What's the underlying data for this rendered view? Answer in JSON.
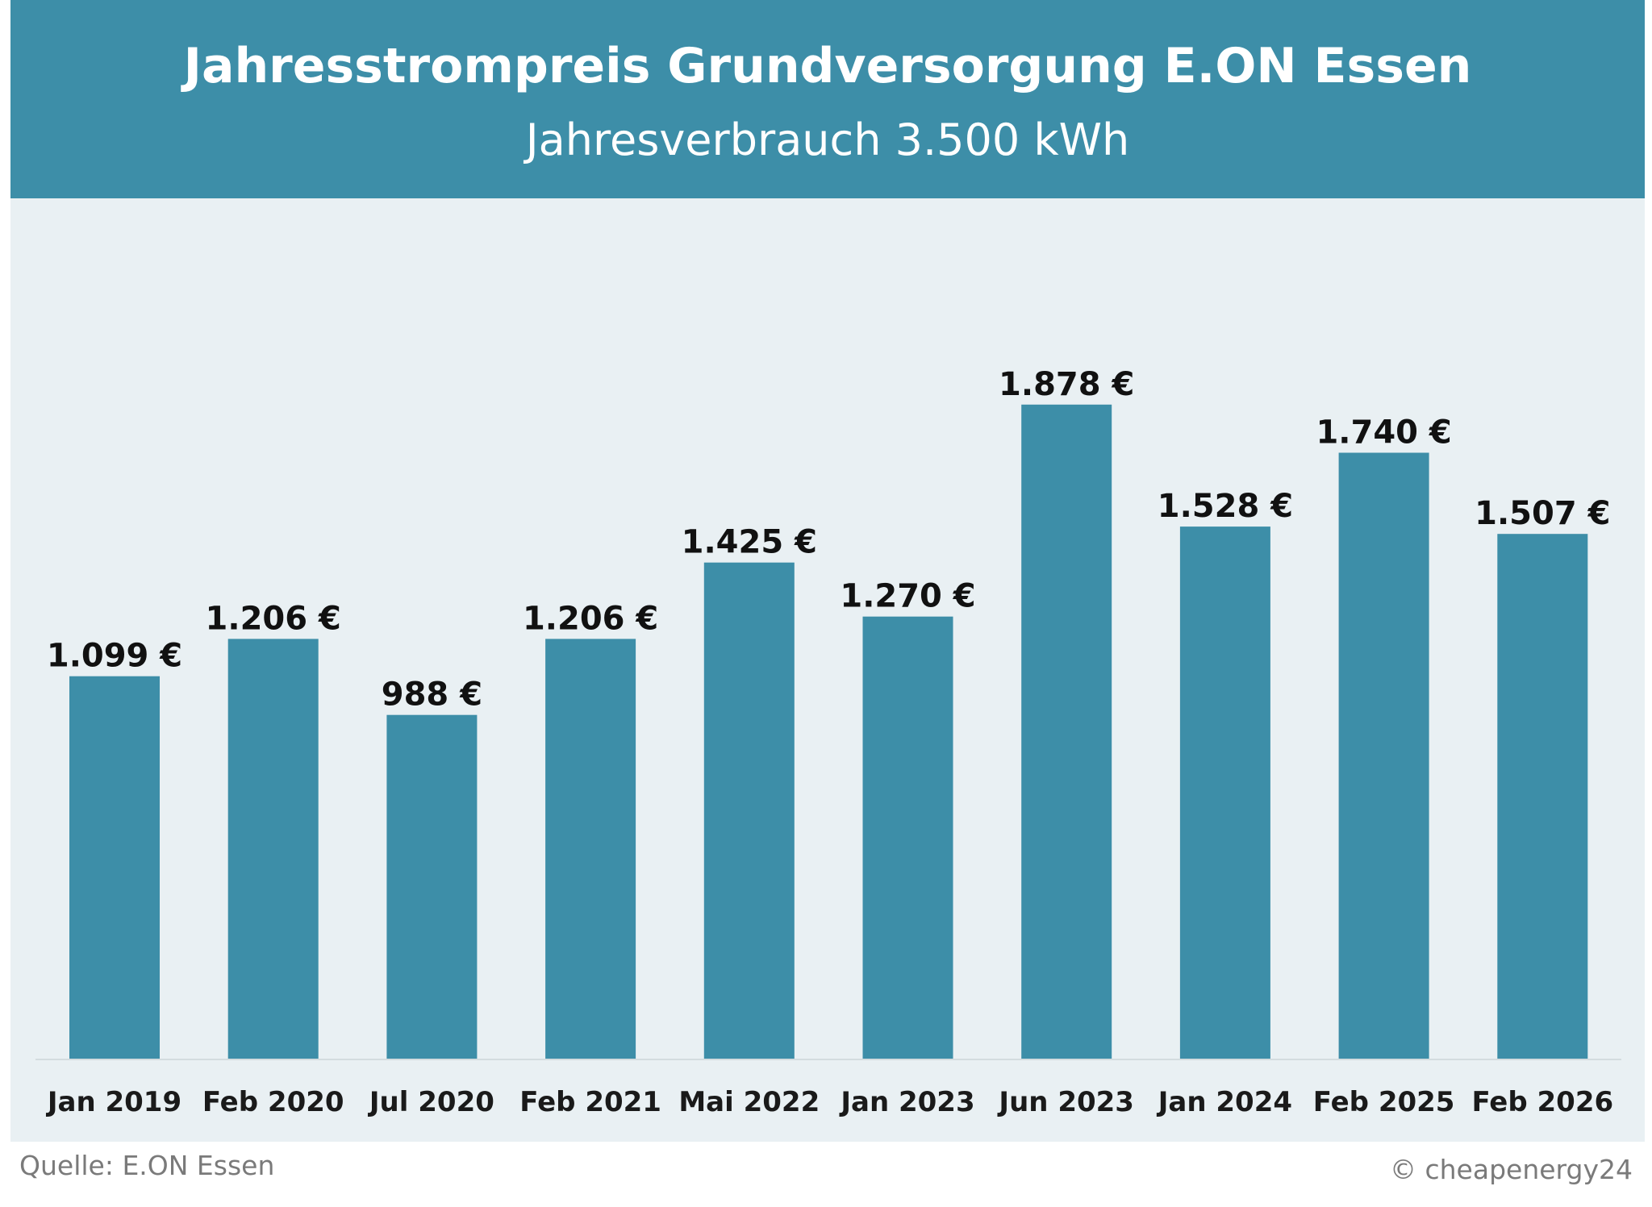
{
  "chart_data": {
    "type": "bar",
    "title": "Jahresstrompreis Grundversorgung E.ON Essen",
    "subtitle": "Jahresverbrauch 3.500 kWh",
    "categories": [
      "Jan 2019",
      "Feb 2020",
      "Jul 2020",
      "Feb 2021",
      "Mai 2022",
      "Jan 2023",
      "Jun 2023",
      "Jan 2024",
      "Feb 2025",
      "Feb 2026"
    ],
    "values": [
      1099,
      1206,
      988,
      1206,
      1425,
      1270,
      1878,
      1528,
      1740,
      1507
    ],
    "value_labels": [
      "1.099 €",
      "1.206 €",
      "988 €",
      "1.206 €",
      "1.425 €",
      "1.270 €",
      "1.878 €",
      "1.528 €",
      "1.740 €",
      "1.507 €"
    ],
    "ylim": [
      0,
      2400
    ],
    "grid": false,
    "legend": "none",
    "colors": {
      "header": "#3d8ea8",
      "plot_background": "#e9f0f3",
      "bar": "#3d8ea8"
    }
  },
  "footer": {
    "source": "Quelle: E.ON Essen",
    "credit": "© cheapenergy24"
  }
}
